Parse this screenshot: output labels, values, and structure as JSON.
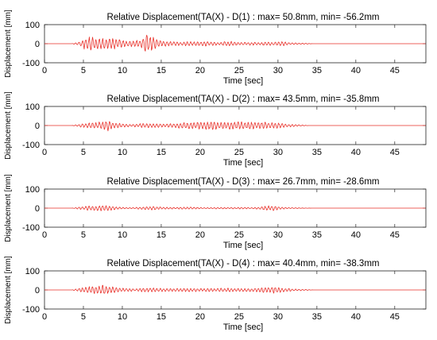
{
  "chart_data": [
    {
      "type": "line",
      "title": "Relative Displacement(TA(X) - D(1) : max= 50.8mm, min= -56.2mm",
      "xlabel": "Time [sec]",
      "ylabel": "Displacement [mm]",
      "xlim": [
        0,
        49
      ],
      "ylim": [
        -100,
        100
      ],
      "xticks": [
        0,
        5,
        10,
        15,
        20,
        25,
        30,
        35,
        40,
        45
      ],
      "yticks": [
        -100,
        0,
        100
      ],
      "line_color": "#e8312a",
      "series": [
        {
          "max": 50.8,
          "min": -56.2,
          "x": [
            0,
            3.5,
            4.5,
            5,
            5.8,
            6.5,
            7.5,
            8.5,
            9.5,
            10.5,
            11.5,
            12.3,
            13,
            13.8,
            14.5,
            15.5,
            16.5,
            17.5,
            18.5,
            19.5,
            20.5,
            21.5,
            22.5,
            23.5,
            24.5,
            25.5,
            26.5,
            27.5,
            28.5,
            29.5,
            30.5,
            31.5,
            32.5,
            33.5,
            34.5,
            49
          ],
          "amplitude": [
            0,
            0,
            10,
            28,
            40,
            35,
            30,
            32,
            25,
            18,
            22,
            20,
            52,
            45,
            22,
            14,
            12,
            10,
            12,
            10,
            14,
            12,
            8,
            16,
            10,
            8,
            9,
            7,
            11,
            9,
            13,
            7,
            4,
            3,
            0,
            0
          ]
        }
      ]
    },
    {
      "type": "line",
      "title": "Relative Displacement(TA(X) - D(2) : max= 43.5mm, min= -35.8mm",
      "xlabel": "Time [sec]",
      "ylabel": "Displacement [mm]",
      "xlim": [
        0,
        49
      ],
      "ylim": [
        -100,
        100
      ],
      "xticks": [
        0,
        5,
        10,
        15,
        20,
        25,
        30,
        35,
        40,
        45
      ],
      "yticks": [
        -100,
        0,
        100
      ],
      "line_color": "#e8312a",
      "series": [
        {
          "max": 43.5,
          "min": -35.8,
          "x": [
            0,
            3.5,
            4.5,
            5.5,
            6.5,
            7.5,
            8.2,
            9,
            10,
            11,
            12,
            13,
            14,
            15,
            16,
            17,
            18,
            19,
            20,
            21,
            22,
            23,
            24,
            25,
            26,
            27,
            28,
            29,
            30,
            31,
            32,
            33,
            34,
            49
          ],
          "amplitude": [
            0,
            0,
            8,
            14,
            16,
            22,
            30,
            18,
            10,
            7,
            9,
            14,
            12,
            9,
            11,
            14,
            17,
            18,
            20,
            21,
            22,
            21,
            20,
            21,
            20,
            19,
            18,
            17,
            15,
            10,
            6,
            3,
            0,
            0
          ]
        }
      ]
    },
    {
      "type": "line",
      "title": "Relative Displacement(TA(X) - D(3) : max= 26.7mm, min= -28.6mm",
      "xlabel": "Time [sec]",
      "ylabel": "Displacement [mm]",
      "xlim": [
        0,
        49
      ],
      "ylim": [
        -100,
        100
      ],
      "xticks": [
        0,
        5,
        10,
        15,
        20,
        25,
        30,
        35,
        40,
        45
      ],
      "yticks": [
        -100,
        0,
        100
      ],
      "line_color": "#e8312a",
      "series": [
        {
          "max": 26.7,
          "min": -28.6,
          "x": [
            0,
            3.5,
            4.5,
            5.5,
            6.5,
            7.5,
            8.5,
            9.5,
            10.5,
            11.5,
            12.5,
            13.5,
            14.5,
            15.5,
            16.5,
            17.5,
            18.5,
            19.5,
            20.5,
            21.5,
            22.5,
            23.5,
            24.5,
            25.5,
            26.5,
            27.5,
            28.5,
            29.5,
            30.5,
            31.5,
            32.5,
            33.5,
            34.5,
            49
          ],
          "amplitude": [
            0,
            0,
            6,
            12,
            14,
            15,
            12,
            6,
            3,
            4,
            7,
            10,
            8,
            6,
            5,
            5,
            8,
            4,
            3,
            3,
            5,
            3,
            4,
            5,
            3,
            5,
            12,
            14,
            6,
            3,
            2,
            1,
            0,
            0
          ]
        }
      ]
    },
    {
      "type": "line",
      "title": "Relative Displacement(TA(X) - D(4) : max= 40.4mm, min= -38.3mm",
      "xlabel": "Time [sec]",
      "ylabel": "Displacement [mm]",
      "xlim": [
        0,
        49
      ],
      "ylim": [
        -100,
        100
      ],
      "xticks": [
        0,
        5,
        10,
        15,
        20,
        25,
        30,
        35,
        40,
        45
      ],
      "yticks": [
        -100,
        0,
        100
      ],
      "line_color": "#e8312a",
      "series": [
        {
          "max": 40.4,
          "min": -38.3,
          "x": [
            0,
            3.5,
            4.5,
            5.5,
            6.5,
            7.5,
            8.5,
            9.5,
            10.5,
            11.5,
            12.5,
            13.5,
            14.5,
            15.5,
            16.5,
            17.5,
            18.5,
            19.5,
            20.5,
            21.5,
            22.5,
            23.5,
            24.5,
            25.5,
            26.5,
            27.5,
            28.5,
            29.5,
            30.5,
            31.5,
            32.5,
            33.5,
            34.5,
            49
          ],
          "amplitude": [
            0,
            0,
            10,
            18,
            22,
            26,
            22,
            12,
            8,
            7,
            10,
            12,
            10,
            8,
            9,
            10,
            11,
            9,
            8,
            9,
            10,
            11,
            9,
            8,
            9,
            10,
            16,
            18,
            12,
            8,
            5,
            3,
            0,
            0
          ]
        }
      ]
    }
  ]
}
